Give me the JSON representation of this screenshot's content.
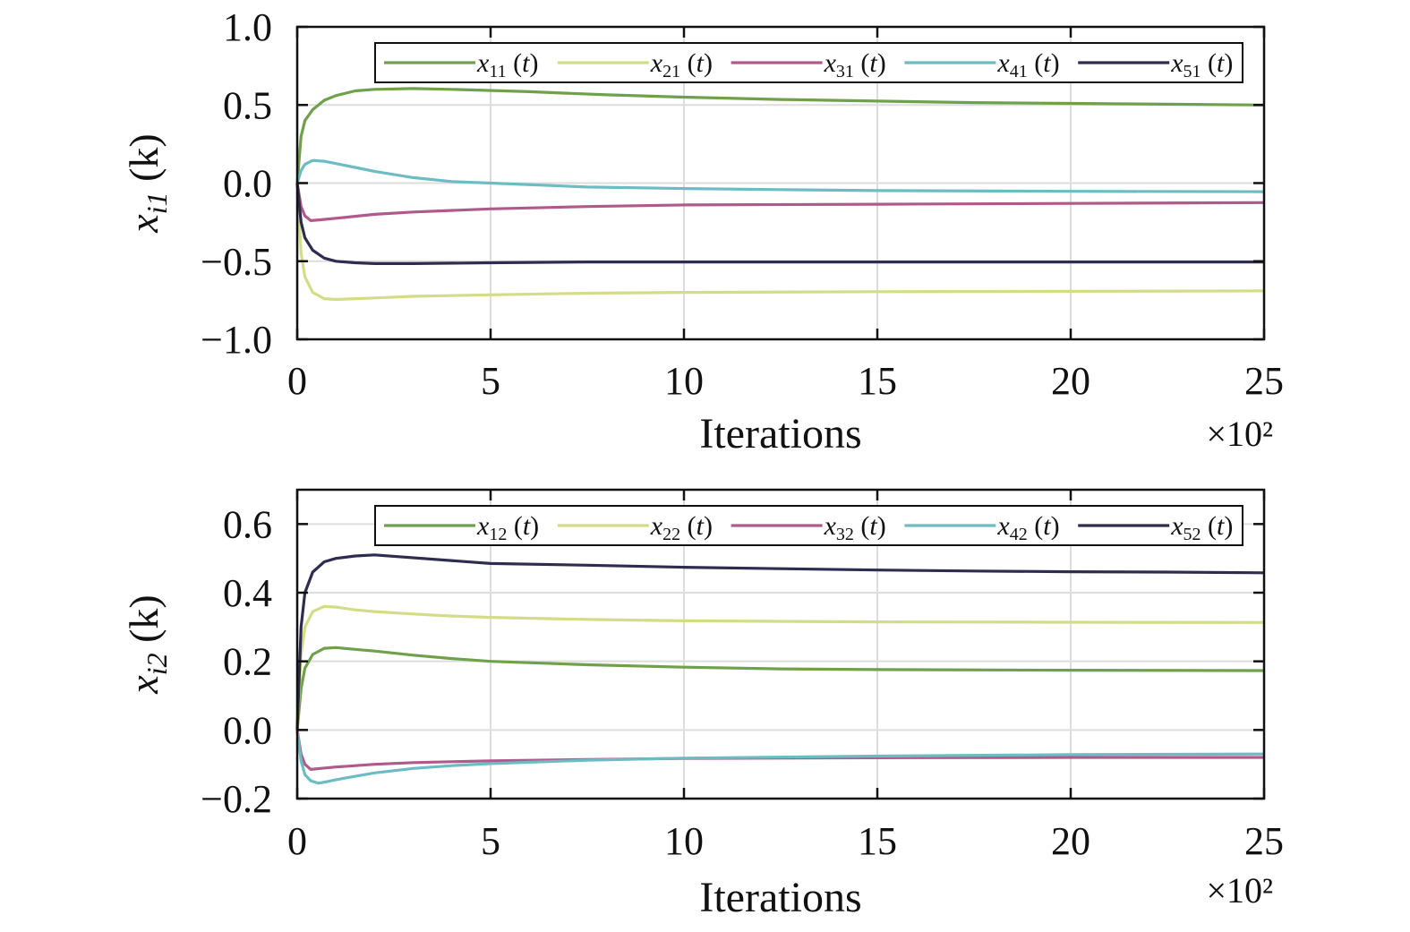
{
  "chart_data": [
    {
      "type": "line",
      "xlabel": "Iterations",
      "x_multiplier": "×10²",
      "ylabel": {
        "var": "x",
        "sub": "i1",
        "arg": "(k)"
      },
      "xlim": [
        0,
        25
      ],
      "ylim": [
        -1.0,
        1.0
      ],
      "xticks": [
        "0",
        "5",
        "10",
        "15",
        "20",
        "25"
      ],
      "yticks": [
        "1.0",
        "0.5",
        "0.0",
        "−0.5",
        "−1.0"
      ],
      "ytick_values": [
        1.0,
        0.5,
        0.0,
        -0.5,
        -1.0
      ],
      "grid": true,
      "legend_position": "top",
      "series": [
        {
          "name": "x11 (t)",
          "var": "x",
          "sub": "11",
          "arg": "(t)",
          "color": "#6fa14a",
          "x": [
            0,
            0.1,
            0.2,
            0.4,
            0.7,
            1.0,
            1.5,
            2.0,
            3.0,
            4.0,
            6.0,
            8.0,
            10.0,
            12.5,
            15.0,
            17.5,
            20.0,
            22.5,
            25.0
          ],
          "y": [
            0.0,
            0.3,
            0.4,
            0.47,
            0.53,
            0.56,
            0.59,
            0.6,
            0.605,
            0.6,
            0.585,
            0.565,
            0.55,
            0.535,
            0.525,
            0.515,
            0.51,
            0.505,
            0.5
          ]
        },
        {
          "name": "x21 (t)",
          "var": "x",
          "sub": "21",
          "arg": "(t)",
          "color": "#d4dc88",
          "x": [
            0,
            0.1,
            0.2,
            0.4,
            0.7,
            1.0,
            1.5,
            2.0,
            3.0,
            5.0,
            7.5,
            10.0,
            15.0,
            20.0,
            25.0
          ],
          "y": [
            0.0,
            -0.45,
            -0.6,
            -0.7,
            -0.74,
            -0.745,
            -0.74,
            -0.735,
            -0.725,
            -0.715,
            -0.705,
            -0.7,
            -0.695,
            -0.693,
            -0.69
          ]
        },
        {
          "name": "x31 (t)",
          "var": "x",
          "sub": "31",
          "arg": "(t)",
          "color": "#b05a8c",
          "x": [
            0,
            0.1,
            0.2,
            0.35,
            0.6,
            1.0,
            2.0,
            3.0,
            5.0,
            7.5,
            10.0,
            15.0,
            20.0,
            25.0
          ],
          "y": [
            0.0,
            -0.15,
            -0.21,
            -0.24,
            -0.235,
            -0.225,
            -0.2,
            -0.185,
            -0.165,
            -0.15,
            -0.14,
            -0.135,
            -0.13,
            -0.125
          ]
        },
        {
          "name": "x41 (t)",
          "var": "x",
          "sub": "41",
          "arg": "(t)",
          "color": "#6cbcc4",
          "x": [
            0,
            0.1,
            0.2,
            0.4,
            0.7,
            1.0,
            1.5,
            2.0,
            3.0,
            4.0,
            5.0,
            7.5,
            10.0,
            12.5,
            15.0,
            20.0,
            25.0
          ],
          "y": [
            0.0,
            0.08,
            0.12,
            0.145,
            0.14,
            0.125,
            0.1,
            0.075,
            0.035,
            0.01,
            0.0,
            -0.025,
            -0.035,
            -0.042,
            -0.048,
            -0.053,
            -0.055
          ]
        },
        {
          "name": "x51 (t)",
          "var": "x",
          "sub": "51",
          "arg": "(t)",
          "color": "#2e2d4f",
          "x": [
            0,
            0.1,
            0.2,
            0.4,
            0.7,
            1.0,
            1.5,
            2.0,
            3.0,
            5.0,
            7.5,
            10.0,
            15.0,
            20.0,
            25.0
          ],
          "y": [
            0.0,
            -0.25,
            -0.35,
            -0.43,
            -0.48,
            -0.5,
            -0.51,
            -0.515,
            -0.515,
            -0.51,
            -0.505,
            -0.505,
            -0.505,
            -0.505,
            -0.505
          ]
        }
      ]
    },
    {
      "type": "line",
      "xlabel": "Iterations",
      "x_multiplier": "×10²",
      "ylabel": {
        "var": "x",
        "sub": "i2",
        "arg": "(k)"
      },
      "xlim": [
        0,
        25
      ],
      "ylim": [
        -0.2,
        0.7
      ],
      "xticks": [
        "0",
        "5",
        "10",
        "15",
        "20",
        "25"
      ],
      "yticks": [
        "0.6",
        "0.4",
        "0.2",
        "0.0",
        "−0.2"
      ],
      "ytick_values": [
        0.6,
        0.4,
        0.2,
        0.0,
        -0.2
      ],
      "grid": true,
      "legend_position": "top",
      "series": [
        {
          "name": "x12 (t)",
          "var": "x",
          "sub": "12",
          "arg": "(t)",
          "color": "#6fa14a",
          "x": [
            0,
            0.1,
            0.2,
            0.4,
            0.7,
            1.0,
            1.5,
            2.0,
            3.0,
            4.0,
            5.0,
            7.5,
            10.0,
            12.5,
            15.0,
            20.0,
            25.0
          ],
          "y": [
            0.0,
            0.12,
            0.18,
            0.22,
            0.238,
            0.24,
            0.235,
            0.23,
            0.218,
            0.208,
            0.2,
            0.19,
            0.183,
            0.178,
            0.176,
            0.174,
            0.173
          ]
        },
        {
          "name": "x22 (t)",
          "var": "x",
          "sub": "22",
          "arg": "(t)",
          "color": "#d4dc88",
          "x": [
            0,
            0.1,
            0.2,
            0.4,
            0.7,
            1.0,
            1.5,
            2.0,
            3.0,
            4.0,
            5.0,
            7.5,
            10.0,
            15.0,
            20.0,
            25.0
          ],
          "y": [
            0.0,
            0.22,
            0.3,
            0.345,
            0.36,
            0.358,
            0.35,
            0.345,
            0.338,
            0.332,
            0.328,
            0.322,
            0.318,
            0.315,
            0.314,
            0.313
          ]
        },
        {
          "name": "x32 (t)",
          "var": "x",
          "sub": "32",
          "arg": "(t)",
          "color": "#b05a8c",
          "x": [
            0,
            0.1,
            0.2,
            0.35,
            0.6,
            1.0,
            2.0,
            3.0,
            5.0,
            7.5,
            10.0,
            15.0,
            20.0,
            25.0
          ],
          "y": [
            0.0,
            -0.07,
            -0.1,
            -0.115,
            -0.112,
            -0.108,
            -0.1,
            -0.095,
            -0.09,
            -0.086,
            -0.083,
            -0.081,
            -0.08,
            -0.08
          ]
        },
        {
          "name": "x42 (t)",
          "var": "x",
          "sub": "42",
          "arg": "(t)",
          "color": "#6cbcc4",
          "x": [
            0,
            0.1,
            0.2,
            0.35,
            0.55,
            0.8,
            1.0,
            1.5,
            2.0,
            3.0,
            4.0,
            5.0,
            7.5,
            10.0,
            15.0,
            20.0,
            25.0
          ],
          "y": [
            0.0,
            -0.09,
            -0.13,
            -0.148,
            -0.155,
            -0.15,
            -0.145,
            -0.135,
            -0.125,
            -0.112,
            -0.104,
            -0.098,
            -0.088,
            -0.082,
            -0.076,
            -0.072,
            -0.07
          ]
        },
        {
          "name": "x52 (t)",
          "var": "x",
          "sub": "52",
          "arg": "(t)",
          "color": "#2e2d4f",
          "x": [
            0,
            0.1,
            0.2,
            0.4,
            0.7,
            1.0,
            1.5,
            2.0,
            5.0,
            7.5,
            10.0,
            12.5,
            15.0,
            17.5,
            20.0,
            22.5,
            25.0
          ],
          "y": [
            0.0,
            0.3,
            0.4,
            0.46,
            0.49,
            0.5,
            0.507,
            0.51,
            0.485,
            0.48,
            0.474,
            0.47,
            0.466,
            0.463,
            0.461,
            0.46,
            0.458
          ]
        }
      ]
    }
  ]
}
